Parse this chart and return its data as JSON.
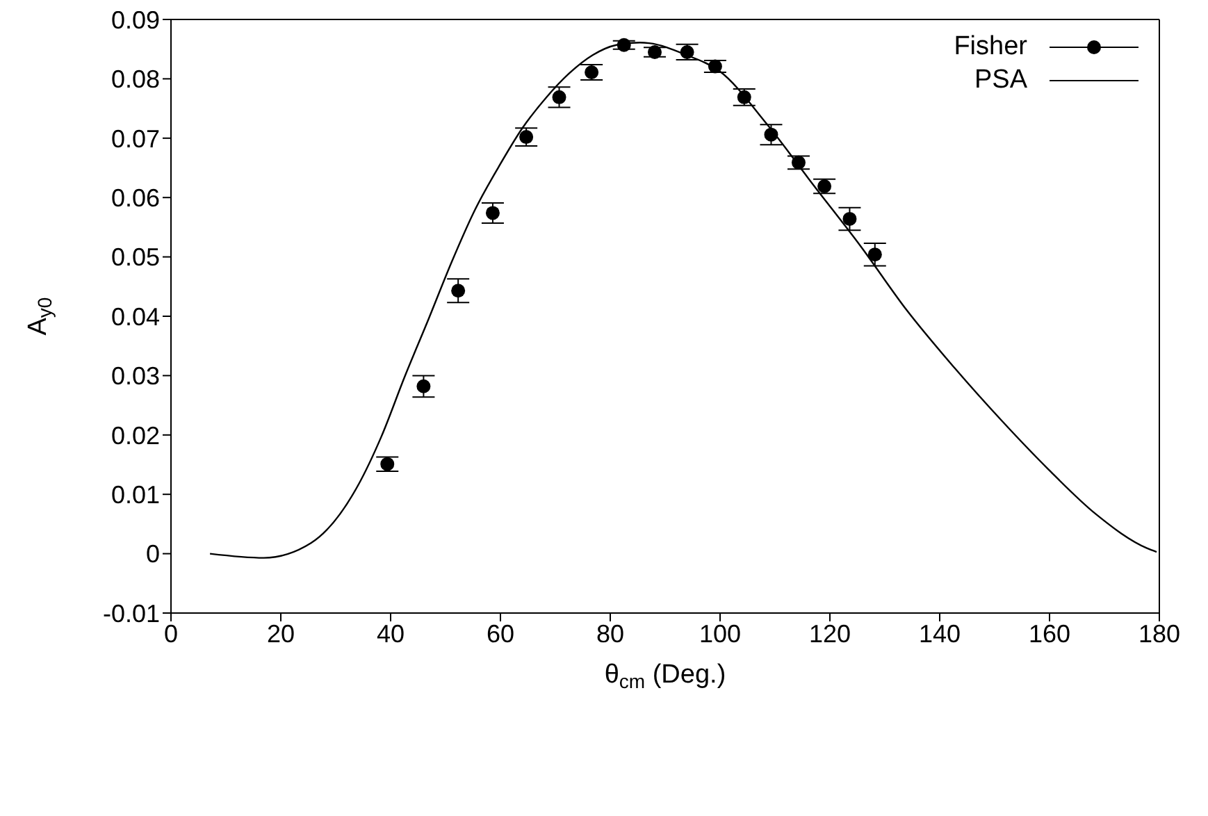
{
  "chart_data": {
    "type": "line",
    "xlabel": "θ$_{cm}$ (Deg.)",
    "ylabel": "A$_{y0}$",
    "xlim": [
      0,
      180
    ],
    "ylim": [
      -0.01,
      0.09
    ],
    "xticks": [
      0,
      20,
      40,
      60,
      80,
      100,
      120,
      140,
      160,
      180
    ],
    "yticks": [
      -0.01,
      0,
      0.01,
      0.02,
      0.03,
      0.04,
      0.05,
      0.06,
      0.07,
      0.08,
      0.09
    ],
    "legend": "top right",
    "series": [
      {
        "name": "Fisher",
        "type": "scatter",
        "color": "#000000",
        "marker": "circle",
        "x": [
          39.4,
          46.0,
          52.3,
          58.6,
          64.7,
          70.7,
          76.6,
          82.5,
          88.1,
          94.0,
          99.1,
          104.4,
          109.3,
          114.3,
          119.0,
          123.6,
          128.2
        ],
        "values": [
          0.0151,
          0.0282,
          0.0443,
          0.0574,
          0.0702,
          0.0769,
          0.0811,
          0.0857,
          0.0845,
          0.0845,
          0.0821,
          0.0769,
          0.0706,
          0.0659,
          0.0619,
          0.0564,
          0.0504
        ],
        "errors": [
          0.0012,
          0.0018,
          0.002,
          0.0017,
          0.0015,
          0.0017,
          0.0013,
          0.0007,
          0.0008,
          0.0013,
          0.001,
          0.0014,
          0.0017,
          0.0011,
          0.0012,
          0.0019,
          0.0019
        ]
      },
      {
        "name": "PSA",
        "color": "#000000",
        "marker": "none",
        "line_style": "solid",
        "x": [
          7.1,
          16.9,
          25.5,
          34.0,
          38.3,
          42.6,
          46.9,
          51.1,
          55.4,
          59.7,
          64.0,
          68.3,
          72.5,
          76.8,
          81.1,
          85.4,
          87.1,
          93.9,
          99.9,
          108.5,
          117.0,
          125.6,
          134.1,
          142.7,
          151.3,
          159.8,
          168.4,
          177.8,
          179.5
        ],
        "values": [
          0,
          -0.0007,
          0.0018,
          0.0114,
          0.0197,
          0.0299,
          0.0395,
          0.0491,
          0.058,
          0.0652,
          0.0717,
          0.0768,
          0.0809,
          0.084,
          0.0857,
          0.0861,
          0.086,
          0.084,
          0.0813,
          0.0724,
          0.0621,
          0.0518,
          0.0409,
          0.0313,
          0.0224,
          0.0142,
          0.0067,
          0.0009,
          0.0003
        ]
      }
    ]
  }
}
